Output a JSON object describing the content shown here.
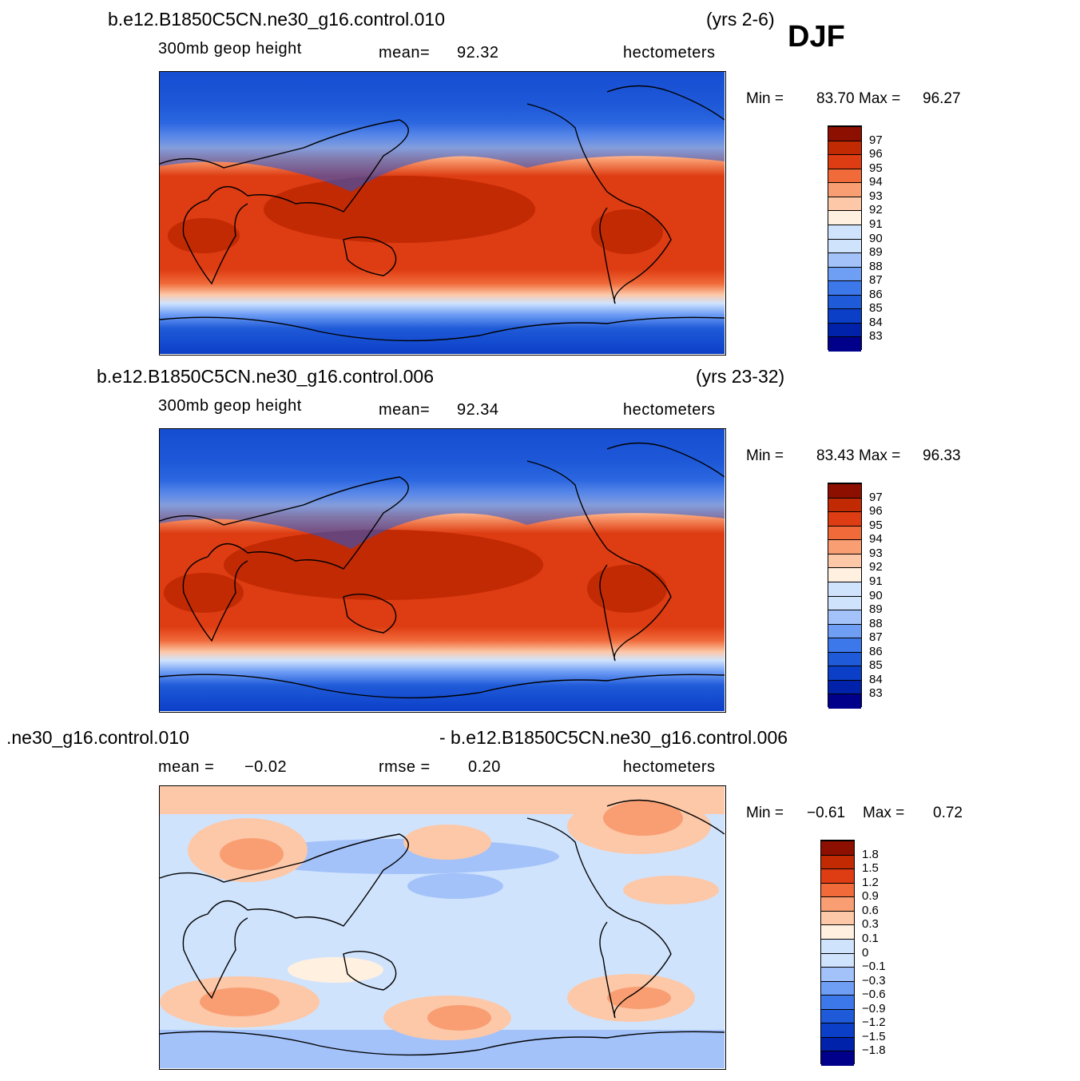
{
  "season": "DJF",
  "panels": [
    {
      "id": "case1",
      "title_left": "b.e12.B1850C5CN.ne30_g16.control.010",
      "title_right": "(yrs 2-6)",
      "left_label": "300mb geop height",
      "center_label": "mean=",
      "center_value": "92.32",
      "units": "hectometers",
      "min_label": "Min =",
      "min_value": "83.70",
      "max_label": "Max =",
      "max_value": "96.27",
      "colorbar": [
        "97",
        "96",
        "95",
        "94",
        "93",
        "92",
        "91",
        "90",
        "89",
        "88",
        "87",
        "86",
        "85",
        "84",
        "83"
      ]
    },
    {
      "id": "case2",
      "title_left": "b.e12.B1850C5CN.ne30_g16.control.006",
      "title_right": "(yrs 23-32)",
      "left_label": "300mb geop height",
      "center_label": "mean=",
      "center_value": "92.34",
      "units": "hectometers",
      "min_label": "Min =",
      "min_value": "83.43",
      "max_label": "Max =",
      "max_value": "96.33",
      "colorbar": [
        "97",
        "96",
        "95",
        "94",
        "93",
        "92",
        "91",
        "90",
        "89",
        "88",
        "87",
        "86",
        "85",
        "84",
        "83"
      ]
    },
    {
      "id": "diff",
      "title_left": ".ne30_g16.control.010",
      "title_right": "- b.e12.B1850C5CN.ne30_g16.control.006",
      "left_label": "mean =",
      "left_value": "−0.02",
      "center_label": "rmse =",
      "center_value": "0.20",
      "units": "hectometers",
      "min_label": "Min =",
      "min_value": "−0.61",
      "max_label": "Max =",
      "max_value": "0.72",
      "colorbar": [
        "1.8",
        "1.5",
        "1.2",
        "0.9",
        "0.6",
        "0.3",
        "0.1",
        "0",
        "−0.1",
        "−0.3",
        "−0.6",
        "−0.9",
        "−1.2",
        "−1.5",
        "−1.8"
      ]
    }
  ],
  "palette": [
    "#00008b",
    "#0022aa",
    "#0b3fc8",
    "#1f5ad8",
    "#3d78ea",
    "#6f9ef5",
    "#a3c2fa",
    "#d0e3fd",
    "#fff0e0",
    "#fcc8a8",
    "#f99e72",
    "#f06a3a",
    "#de3c12",
    "#c22a04",
    "#8c0f00"
  ],
  "chart_data": [
    {
      "type": "heatmap",
      "title": "b.e12.B1850C5CN.ne30_g16.control.010 (yrs 2-6)",
      "variable": "300mb geop height",
      "units": "hectometers",
      "mean": 92.32,
      "min": 83.7,
      "max": 96.27,
      "contour_levels": [
        83,
        84,
        85,
        86,
        87,
        88,
        89,
        90,
        91,
        92,
        93,
        94,
        95,
        96,
        97
      ]
    },
    {
      "type": "heatmap",
      "title": "b.e12.B1850C5CN.ne30_g16.control.006 (yrs 23-32)",
      "variable": "300mb geop height",
      "units": "hectometers",
      "mean": 92.34,
      "min": 83.43,
      "max": 96.33,
      "contour_levels": [
        83,
        84,
        85,
        86,
        87,
        88,
        89,
        90,
        91,
        92,
        93,
        94,
        95,
        96,
        97
      ]
    },
    {
      "type": "heatmap",
      "title": "control.010 - control.006",
      "units": "hectometers",
      "mean": -0.02,
      "rmse": 0.2,
      "min": -0.61,
      "max": 0.72,
      "contour_levels": [
        -1.8,
        -1.5,
        -1.2,
        -0.9,
        -0.6,
        -0.3,
        -0.1,
        0,
        0.1,
        0.3,
        0.6,
        0.9,
        1.2,
        1.5,
        1.8
      ]
    }
  ]
}
